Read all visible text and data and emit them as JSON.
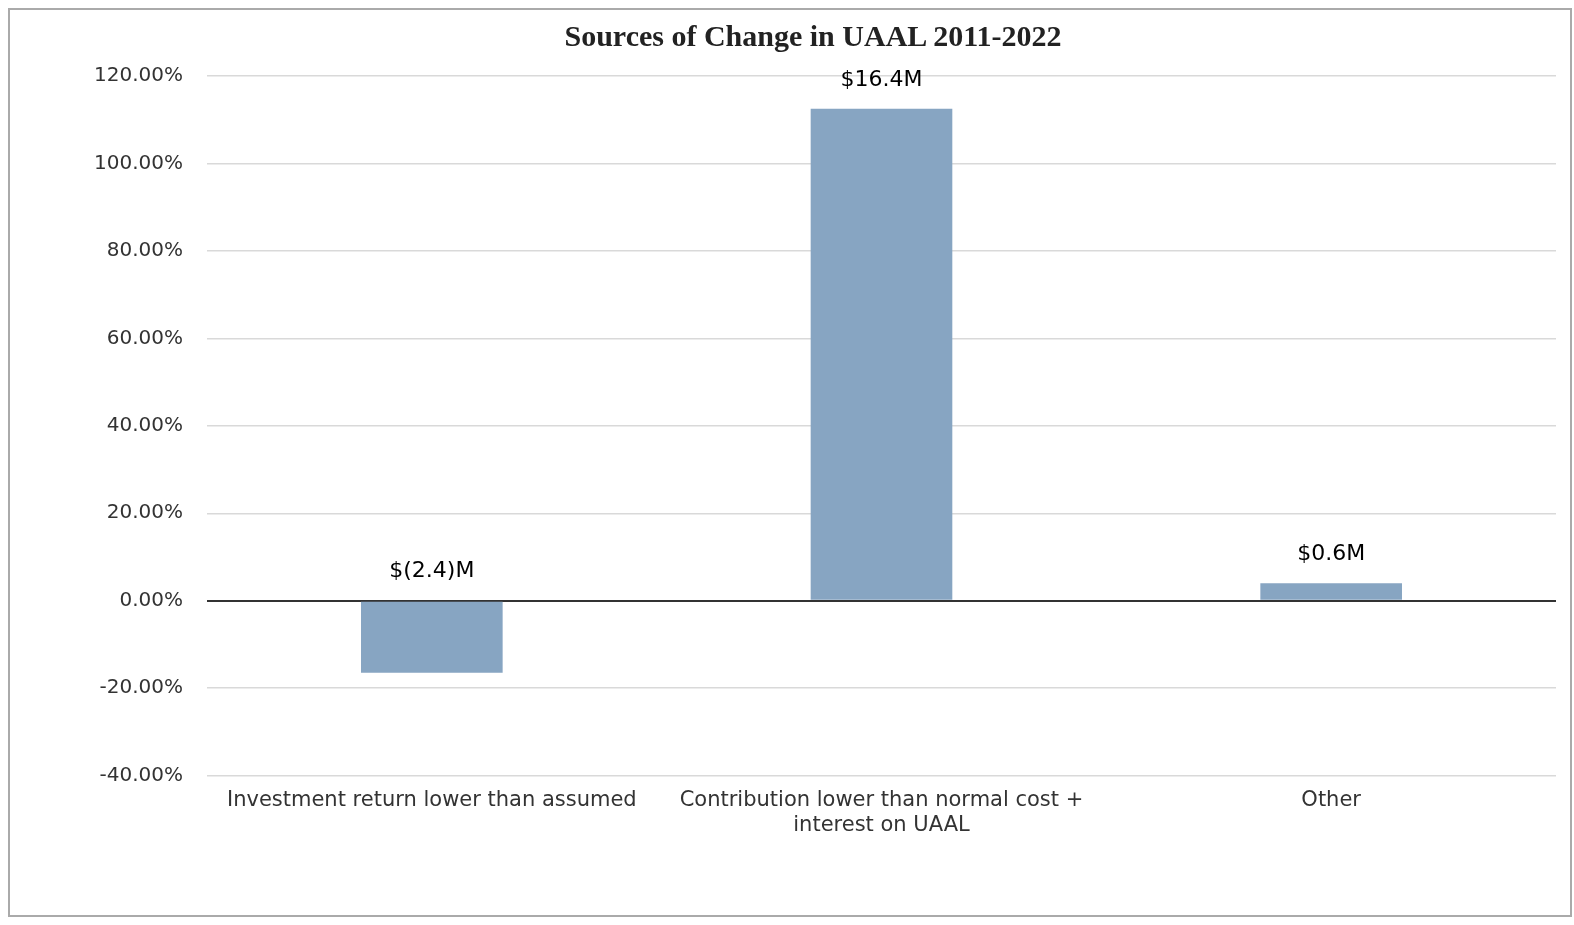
{
  "chart_data": {
    "type": "bar",
    "title": "Sources of Change in UAAL 2011-2022",
    "categories": [
      "Investment return lower than assumed",
      "Contribution lower than normal cost + interest on UAAL",
      "Other"
    ],
    "values": [
      -16.5,
      112.5,
      4
    ],
    "color": "#87a5c2",
    "annotations": [
      "$(2.4)M",
      "$16.4M",
      "$0.6M"
    ],
    "ylim": [
      -40,
      120
    ],
    "yticks": [
      {
        "value": -40,
        "label": "-40.00%"
      },
      {
        "value": -20,
        "label": "-20.00%"
      },
      {
        "value": 0,
        "label": "0.00%"
      },
      {
        "value": 20,
        "label": "20.00%"
      },
      {
        "value": 40,
        "label": "40.00%"
      },
      {
        "value": 60,
        "label": "60.00%"
      },
      {
        "value": 80,
        "label": "80.00%"
      },
      {
        "value": 100,
        "label": "100.00%"
      },
      {
        "value": 120,
        "label": "120.00%"
      }
    ],
    "grid": "y",
    "legend": false
  }
}
